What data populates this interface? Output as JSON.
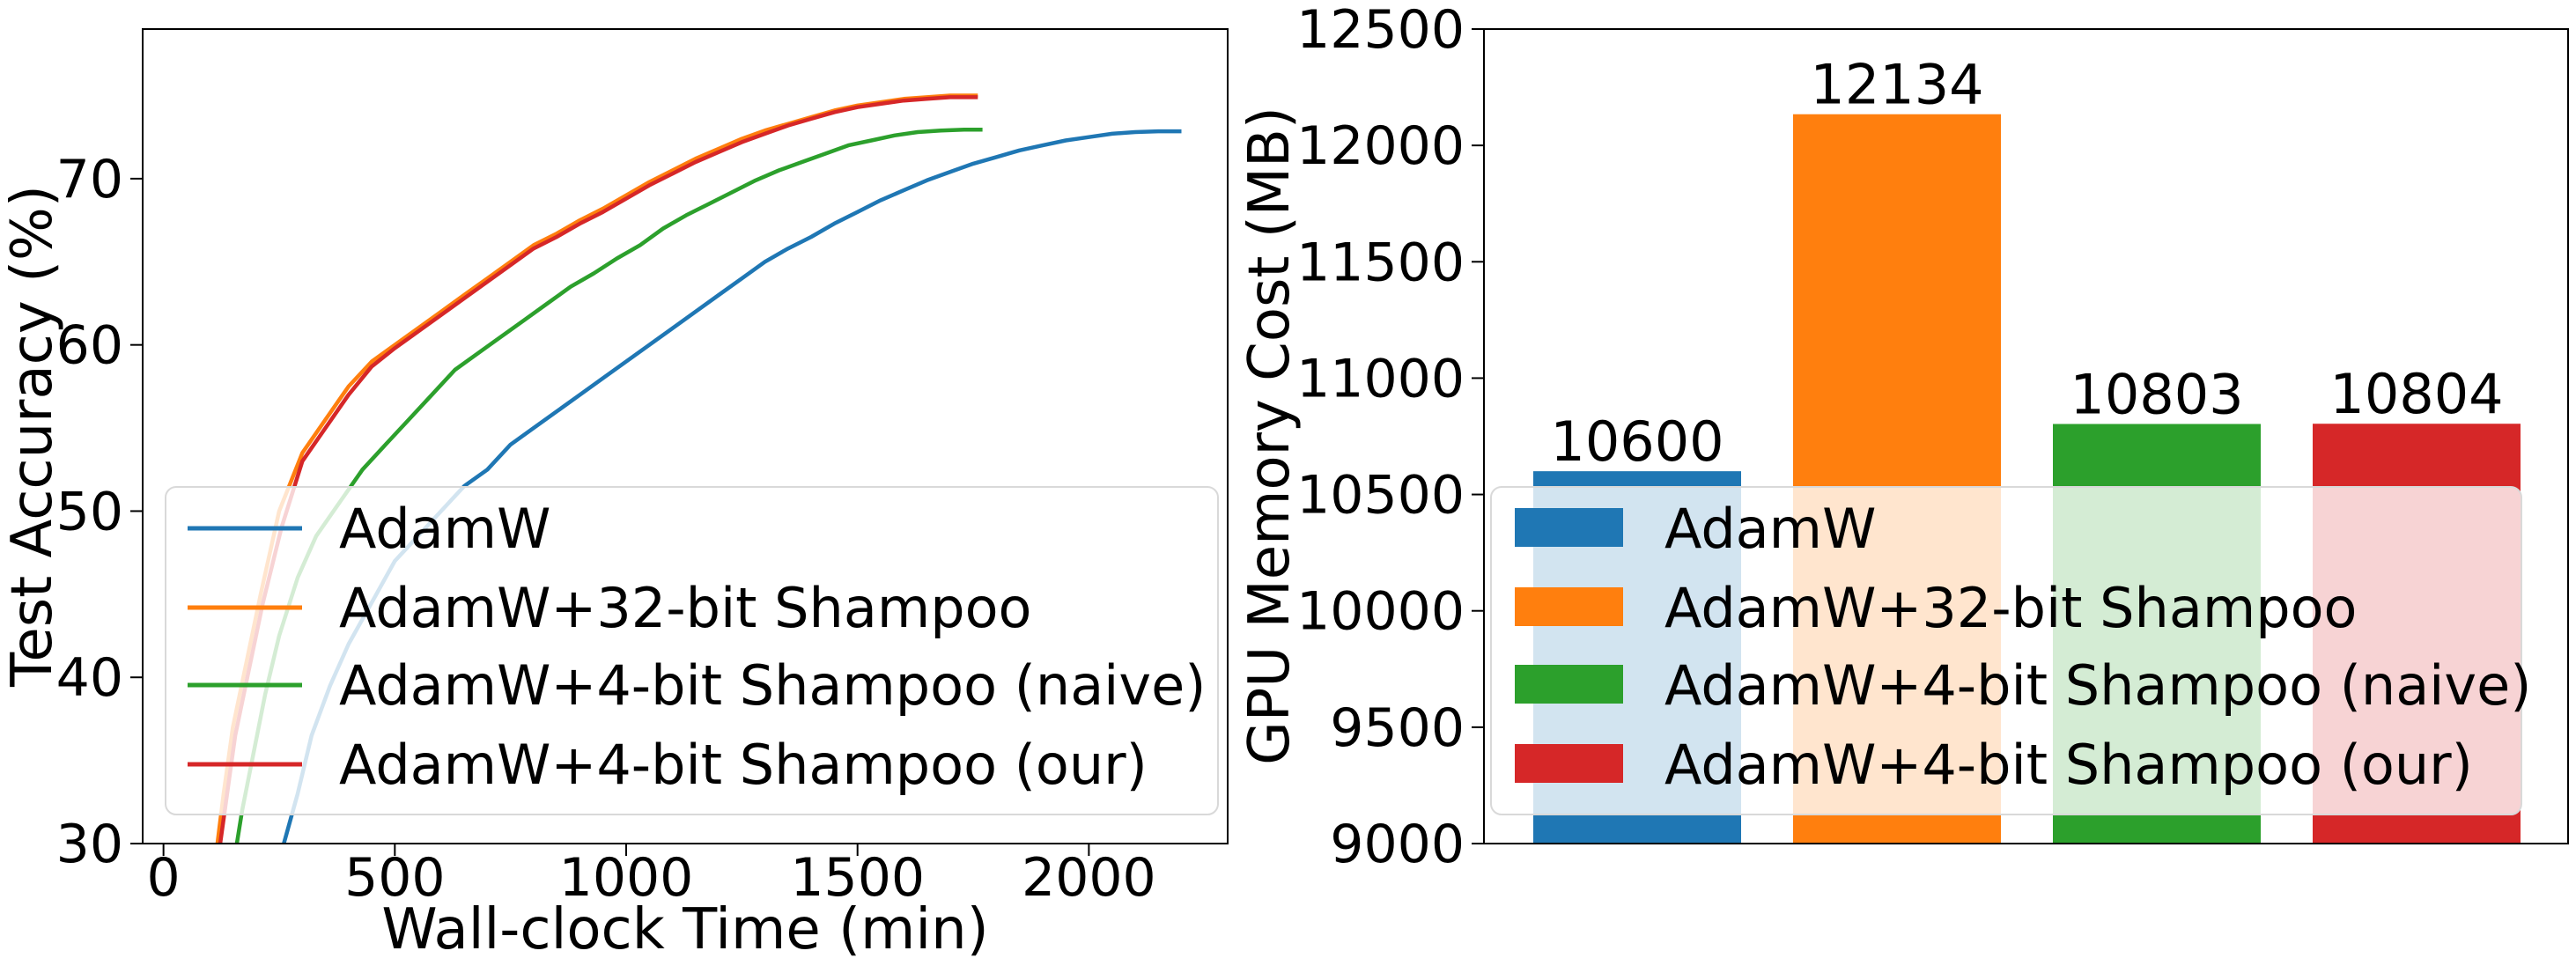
{
  "colors": {
    "adamw": "#1f77b4",
    "shampoo32": "#ff7f0e",
    "shampoo4_naive": "#2ca02c",
    "shampoo4_our": "#d62728"
  },
  "chart_data": [
    {
      "type": "line",
      "xlabel": "Wall-clock Time (min)",
      "ylabel": "Test Accuracy (%)",
      "xlim": [
        -45,
        2300
      ],
      "ylim": [
        30,
        79
      ],
      "xticks": [
        "0",
        "500",
        "1000",
        "1500",
        "2000"
      ],
      "xtick_values": [
        0,
        500,
        1000,
        1500,
        2000
      ],
      "yticks": [
        "30",
        "40",
        "50",
        "60",
        "70"
      ],
      "ytick_values": [
        30,
        40,
        50,
        60,
        70
      ],
      "grid": false,
      "legend_position": "lower-right",
      "series": [
        {
          "name": "AdamW",
          "color": "#1f77b4",
          "x": [
            245,
            265,
            290,
            320,
            360,
            400,
            450,
            500,
            550,
            600,
            650,
            700,
            750,
            800,
            850,
            900,
            950,
            1000,
            1050,
            1100,
            1150,
            1200,
            1250,
            1300,
            1350,
            1400,
            1450,
            1500,
            1550,
            1600,
            1650,
            1700,
            1750,
            1800,
            1850,
            1900,
            1950,
            2000,
            2050,
            2100,
            2150,
            2200
          ],
          "y": [
            28.5,
            30.5,
            33,
            36.5,
            39.5,
            42,
            44.5,
            47,
            48.5,
            50,
            51.5,
            52.5,
            54,
            55,
            56,
            57,
            58,
            59,
            60,
            61,
            62,
            63,
            64,
            65,
            65.8,
            66.5,
            67.3,
            68,
            68.7,
            69.3,
            69.9,
            70.4,
            70.9,
            71.3,
            71.7,
            72,
            72.3,
            72.5,
            72.7,
            72.8,
            72.85,
            72.85
          ]
        },
        {
          "name": "AdamW+32-bit Shampoo",
          "color": "#ff7f0e",
          "x": [
            110,
            130,
            150,
            180,
            210,
            250,
            300,
            350,
            400,
            450,
            500,
            550,
            600,
            650,
            700,
            750,
            800,
            850,
            900,
            950,
            1000,
            1050,
            1100,
            1150,
            1200,
            1250,
            1300,
            1350,
            1400,
            1450,
            1500,
            1550,
            1600,
            1650,
            1700,
            1760
          ],
          "y": [
            28.5,
            33,
            37,
            41,
            45,
            50,
            53.5,
            55.5,
            57.5,
            59,
            60,
            61,
            62,
            63,
            64,
            65,
            66,
            66.7,
            67.5,
            68.2,
            69,
            69.8,
            70.5,
            71.2,
            71.8,
            72.4,
            72.9,
            73.3,
            73.7,
            74.1,
            74.4,
            74.6,
            74.8,
            74.9,
            75,
            75
          ]
        },
        {
          "name": "AdamW+4-bit Shampoo (naive)",
          "color": "#2ca02c",
          "x": [
            150,
            170,
            195,
            220,
            250,
            290,
            330,
            380,
            430,
            480,
            530,
            580,
            630,
            680,
            730,
            780,
            830,
            880,
            930,
            980,
            1030,
            1080,
            1130,
            1180,
            1230,
            1280,
            1330,
            1380,
            1430,
            1480,
            1530,
            1580,
            1630,
            1680,
            1730,
            1770
          ],
          "y": [
            28.5,
            32,
            35.5,
            39,
            42.5,
            46,
            48.5,
            50.5,
            52.5,
            54,
            55.5,
            57,
            58.5,
            59.5,
            60.5,
            61.5,
            62.5,
            63.5,
            64.3,
            65.2,
            66,
            67,
            67.8,
            68.5,
            69.2,
            69.9,
            70.5,
            71,
            71.5,
            72,
            72.3,
            72.6,
            72.8,
            72.9,
            72.95,
            72.95
          ]
        },
        {
          "name": "AdamW+4-bit Shampoo (our)",
          "color": "#d62728",
          "x": [
            115,
            135,
            155,
            185,
            215,
            255,
            300,
            350,
            400,
            450,
            500,
            550,
            600,
            650,
            700,
            750,
            800,
            850,
            900,
            950,
            1000,
            1050,
            1100,
            1150,
            1200,
            1250,
            1300,
            1350,
            1400,
            1450,
            1500,
            1550,
            1600,
            1650,
            1700,
            1760
          ],
          "y": [
            28.5,
            32.5,
            36.5,
            40.5,
            44.5,
            49,
            53,
            55,
            57,
            58.7,
            59.8,
            60.8,
            61.8,
            62.8,
            63.8,
            64.8,
            65.8,
            66.5,
            67.3,
            68,
            68.8,
            69.6,
            70.3,
            71,
            71.6,
            72.2,
            72.7,
            73.2,
            73.6,
            74,
            74.3,
            74.5,
            74.7,
            74.8,
            74.9,
            74.9
          ]
        }
      ]
    },
    {
      "type": "bar",
      "ylabel": "GPU Memory Cost (MB)",
      "ylim": [
        9000,
        12500
      ],
      "yticks": [
        "9000",
        "9500",
        "10000",
        "10500",
        "11000",
        "11500",
        "12000",
        "12500"
      ],
      "ytick_values": [
        9000,
        9500,
        10000,
        10500,
        11000,
        11500,
        12000,
        12500
      ],
      "legend_position": "lower-left",
      "series": [
        {
          "name": "AdamW",
          "color": "#1f77b4",
          "value": 10600,
          "label": "10600"
        },
        {
          "name": "AdamW+32-bit Shampoo",
          "color": "#ff7f0e",
          "value": 12134,
          "label": "12134"
        },
        {
          "name": "AdamW+4-bit Shampoo (naive)",
          "color": "#2ca02c",
          "value": 10803,
          "label": "10803"
        },
        {
          "name": "AdamW+4-bit Shampoo (our)",
          "color": "#d62728",
          "value": 10804,
          "label": "10804"
        }
      ]
    }
  ]
}
